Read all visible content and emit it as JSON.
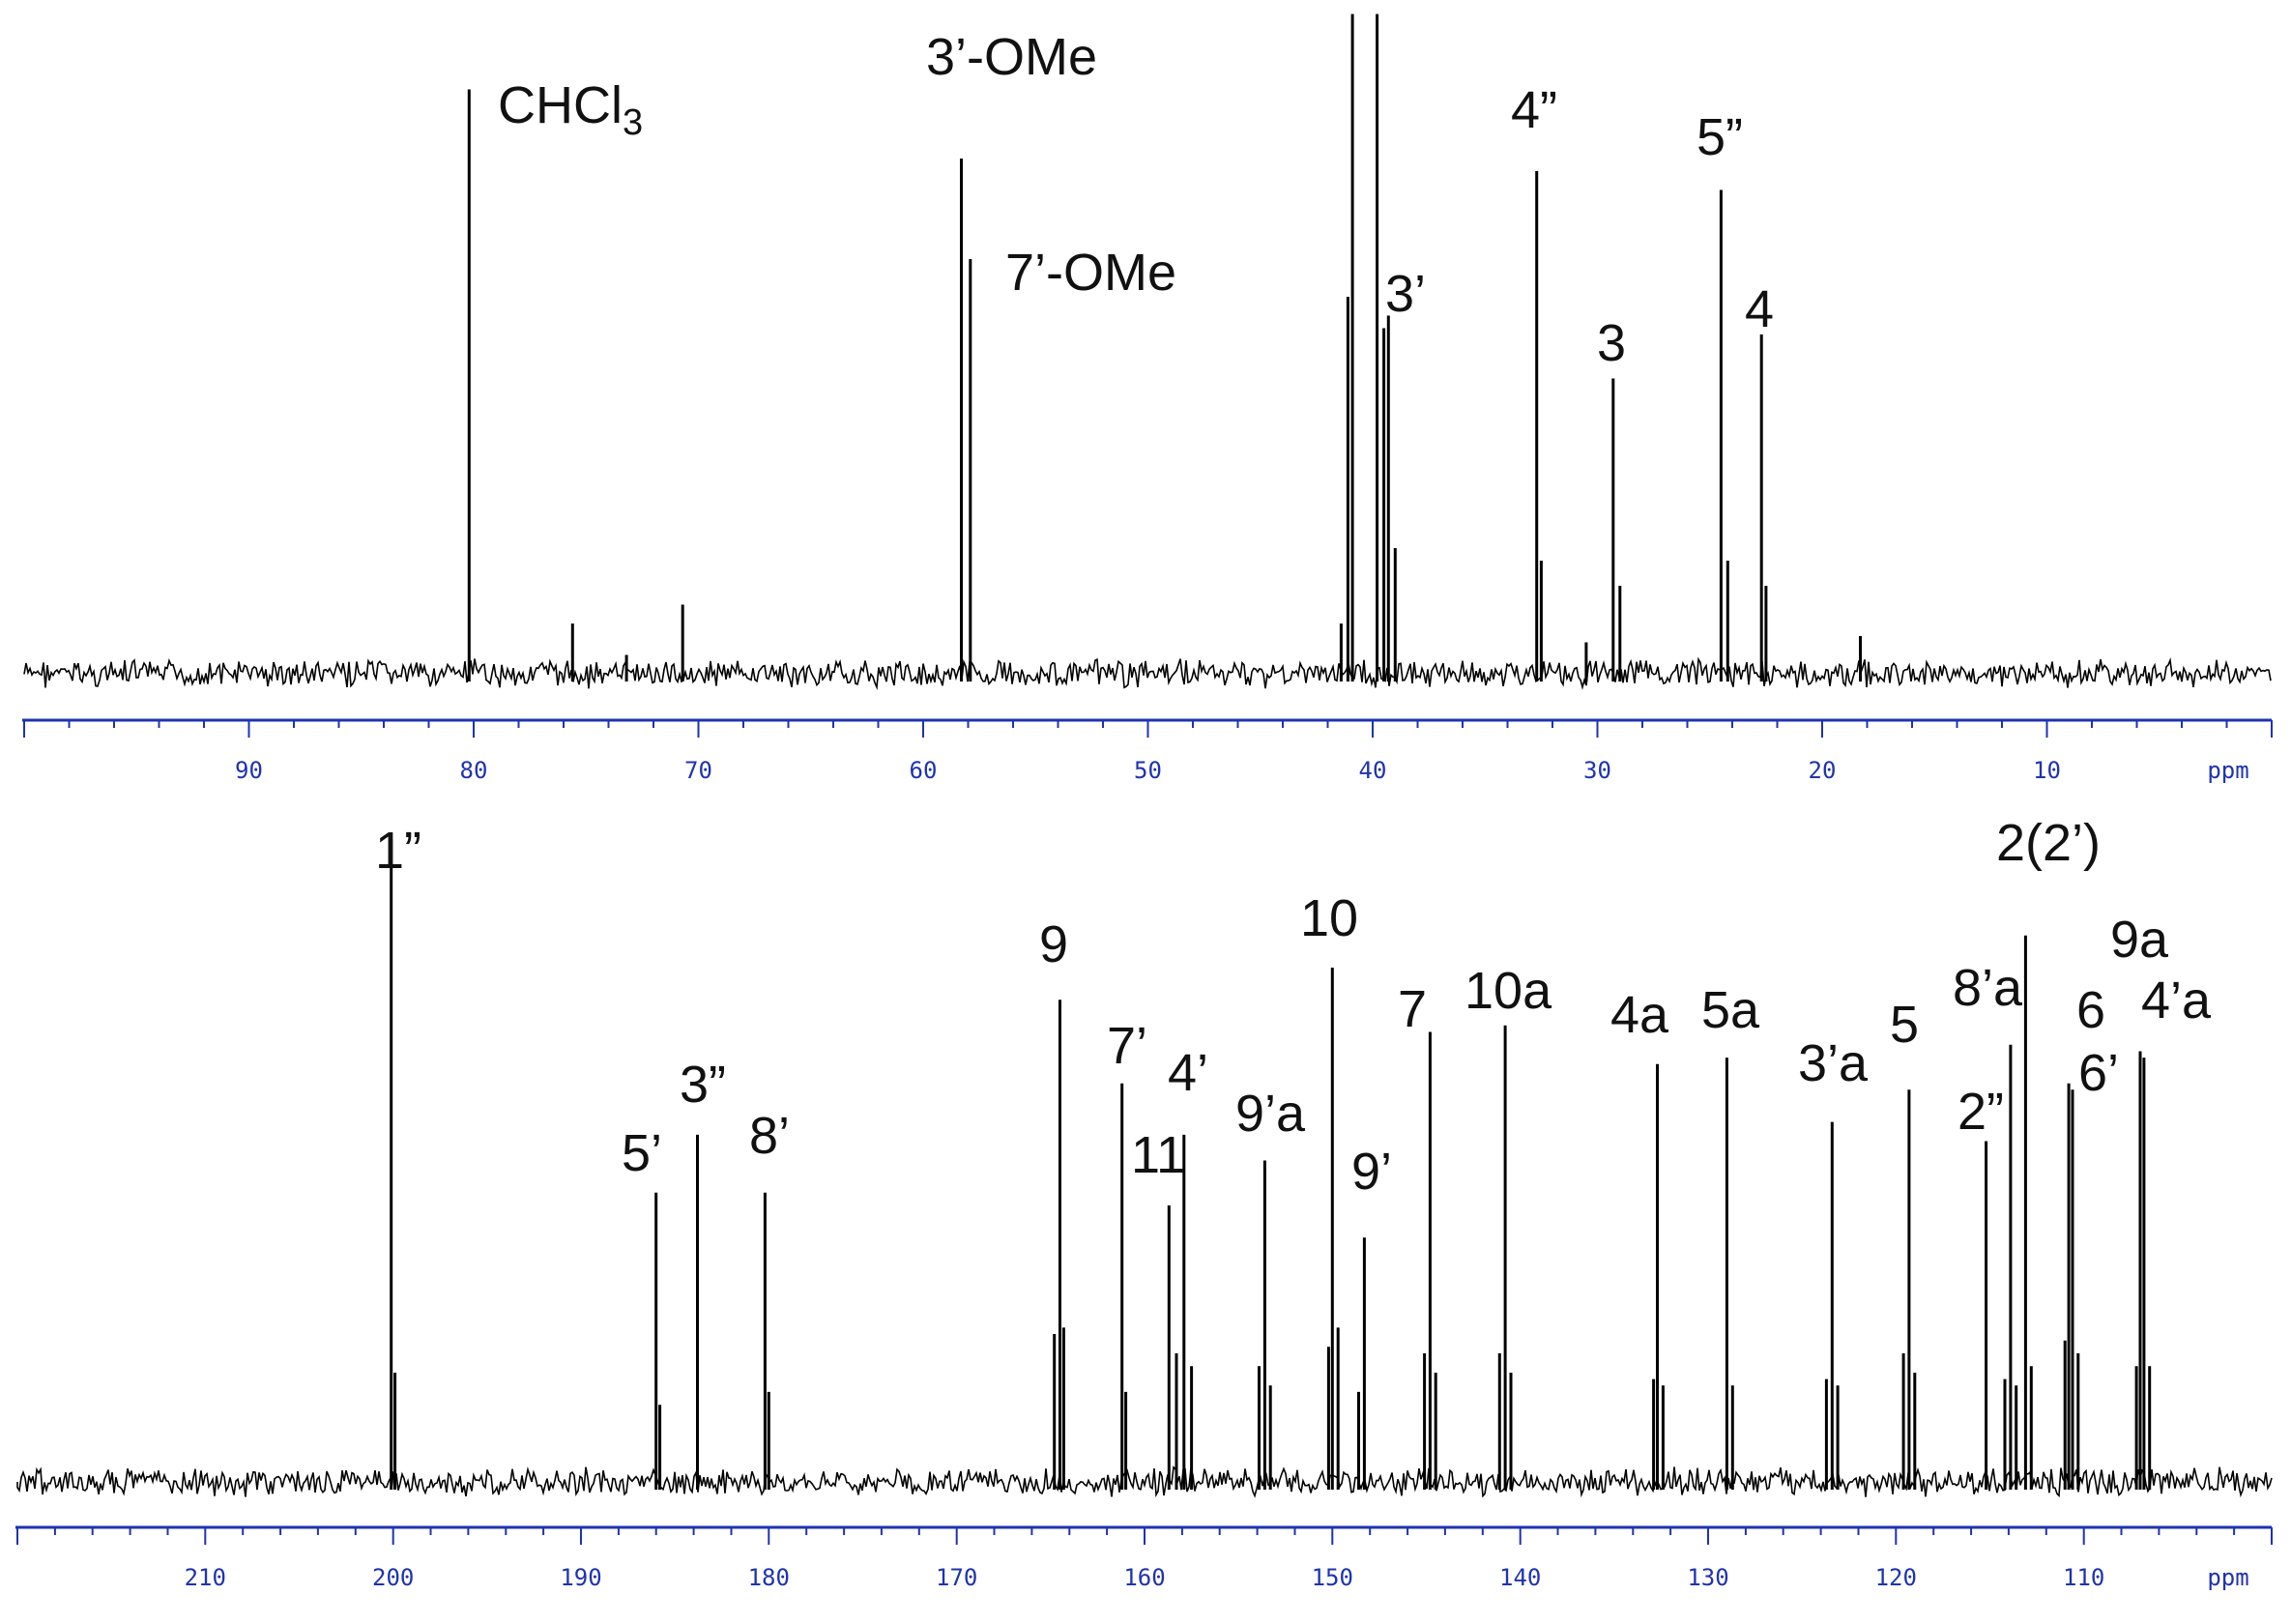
{
  "chart_data": [
    {
      "type": "line",
      "title": "",
      "xlabel": "ppm",
      "xlim": [
        100,
        0
      ],
      "x_ticks": [
        90,
        80,
        70,
        60,
        50,
        40,
        30,
        20,
        10
      ],
      "grid": false,
      "peaks": [
        {
          "ppm": 80.2,
          "height": 0.93,
          "label": "CHCl",
          "sub": "3"
        },
        {
          "ppm": 75.6,
          "height": 0.08,
          "label": ""
        },
        {
          "ppm": 73.2,
          "height": 0.03,
          "label": ""
        },
        {
          "ppm": 70.7,
          "height": 0.11,
          "label": ""
        },
        {
          "ppm": 58.3,
          "height": 0.82,
          "label": "3’-OMe"
        },
        {
          "ppm": 57.9,
          "height": 0.66,
          "label": "7’-OMe"
        },
        {
          "ppm": 41.4,
          "height": 0.08,
          "label": ""
        },
        {
          "ppm": 41.1,
          "height": 0.6,
          "label": ""
        },
        {
          "ppm": 40.9,
          "height": 1.05,
          "label": ""
        },
        {
          "ppm": 39.8,
          "height": 1.05,
          "label": ""
        },
        {
          "ppm": 39.5,
          "height": 0.55,
          "label": ""
        },
        {
          "ppm": 39.3,
          "height": 0.57,
          "label": "3’"
        },
        {
          "ppm": 39.0,
          "height": 0.2,
          "label": ""
        },
        {
          "ppm": 32.7,
          "height": 0.8,
          "label": "4”"
        },
        {
          "ppm": 32.5,
          "height": 0.18,
          "label": ""
        },
        {
          "ppm": 30.5,
          "height": 0.05,
          "label": ""
        },
        {
          "ppm": 29.3,
          "height": 0.47,
          "label": "3"
        },
        {
          "ppm": 29.0,
          "height": 0.14,
          "label": ""
        },
        {
          "ppm": 24.5,
          "height": 0.77,
          "label": "5”"
        },
        {
          "ppm": 24.2,
          "height": 0.18,
          "label": ""
        },
        {
          "ppm": 22.7,
          "height": 0.54,
          "label": "4"
        },
        {
          "ppm": 22.5,
          "height": 0.14,
          "label": ""
        },
        {
          "ppm": 18.3,
          "height": 0.06,
          "label": ""
        }
      ]
    },
    {
      "type": "line",
      "title": "",
      "xlabel": "ppm",
      "xlim": [
        220,
        100
      ],
      "x_ticks": [
        210,
        200,
        190,
        180,
        170,
        160,
        150,
        140,
        130,
        120,
        110
      ],
      "grid": false,
      "peaks": [
        {
          "ppm": 200.1,
          "height": 1.0,
          "label": "1”"
        },
        {
          "ppm": 199.9,
          "height": 0.17,
          "label": ""
        },
        {
          "ppm": 186.0,
          "height": 0.45,
          "label": "5’"
        },
        {
          "ppm": 185.8,
          "height": 0.12,
          "label": ""
        },
        {
          "ppm": 183.8,
          "height": 0.54,
          "label": "3”"
        },
        {
          "ppm": 180.2,
          "height": 0.45,
          "label": "8’"
        },
        {
          "ppm": 180.0,
          "height": 0.14,
          "label": ""
        },
        {
          "ppm": 164.8,
          "height": 0.23,
          "label": ""
        },
        {
          "ppm": 164.5,
          "height": 0.75,
          "label": "9"
        },
        {
          "ppm": 164.3,
          "height": 0.24,
          "label": ""
        },
        {
          "ppm": 161.2,
          "height": 0.62,
          "label": "7’"
        },
        {
          "ppm": 161.0,
          "height": 0.14,
          "label": ""
        },
        {
          "ppm": 158.7,
          "height": 0.43,
          "label": "11"
        },
        {
          "ppm": 158.3,
          "height": 0.2,
          "label": ""
        },
        {
          "ppm": 157.9,
          "height": 0.54,
          "label": "4’"
        },
        {
          "ppm": 157.5,
          "height": 0.18,
          "label": ""
        },
        {
          "ppm": 153.9,
          "height": 0.18,
          "label": ""
        },
        {
          "ppm": 153.6,
          "height": 0.5,
          "label": "9’a"
        },
        {
          "ppm": 153.3,
          "height": 0.15,
          "label": ""
        },
        {
          "ppm": 150.2,
          "height": 0.21,
          "label": ""
        },
        {
          "ppm": 150.0,
          "height": 0.8,
          "label": "10"
        },
        {
          "ppm": 149.7,
          "height": 0.24,
          "label": ""
        },
        {
          "ppm": 148.6,
          "height": 0.14,
          "label": ""
        },
        {
          "ppm": 148.3,
          "height": 0.38,
          "label": "9’"
        },
        {
          "ppm": 145.1,
          "height": 0.2,
          "label": ""
        },
        {
          "ppm": 144.8,
          "height": 0.7,
          "label": "7"
        },
        {
          "ppm": 144.5,
          "height": 0.17,
          "label": ""
        },
        {
          "ppm": 141.1,
          "height": 0.2,
          "label": ""
        },
        {
          "ppm": 140.8,
          "height": 0.71,
          "label": "10a"
        },
        {
          "ppm": 140.5,
          "height": 0.17,
          "label": ""
        },
        {
          "ppm": 132.9,
          "height": 0.16,
          "label": ""
        },
        {
          "ppm": 132.7,
          "height": 0.65,
          "label": "4a"
        },
        {
          "ppm": 132.4,
          "height": 0.15,
          "label": ""
        },
        {
          "ppm": 129.0,
          "height": 0.66,
          "label": "5a"
        },
        {
          "ppm": 128.7,
          "height": 0.15,
          "label": ""
        },
        {
          "ppm": 123.7,
          "height": 0.16,
          "label": ""
        },
        {
          "ppm": 123.4,
          "height": 0.56,
          "label": "3’a"
        },
        {
          "ppm": 123.1,
          "height": 0.15,
          "label": ""
        },
        {
          "ppm": 119.6,
          "height": 0.2,
          "label": ""
        },
        {
          "ppm": 119.3,
          "height": 0.61,
          "label": "5"
        },
        {
          "ppm": 119.0,
          "height": 0.17,
          "label": ""
        },
        {
          "ppm": 115.2,
          "height": 0.53,
          "label": "2”"
        },
        {
          "ppm": 114.2,
          "height": 0.16,
          "label": ""
        },
        {
          "ppm": 113.9,
          "height": 0.68,
          "label": "8’a"
        },
        {
          "ppm": 113.6,
          "height": 0.15,
          "label": ""
        },
        {
          "ppm": 113.1,
          "height": 0.85,
          "label": "2(2’)"
        },
        {
          "ppm": 112.8,
          "height": 0.18,
          "label": ""
        },
        {
          "ppm": 111.0,
          "height": 0.22,
          "label": ""
        },
        {
          "ppm": 110.8,
          "height": 0.62,
          "label": "6"
        },
        {
          "ppm": 110.6,
          "height": 0.61,
          "label": "6’"
        },
        {
          "ppm": 110.3,
          "height": 0.2,
          "label": ""
        },
        {
          "ppm": 107.2,
          "height": 0.18,
          "label": ""
        },
        {
          "ppm": 107.0,
          "height": 0.67,
          "label": "9a"
        },
        {
          "ppm": 106.8,
          "height": 0.66,
          "label": "4’a"
        },
        {
          "ppm": 106.5,
          "height": 0.18,
          "label": ""
        }
      ]
    }
  ]
}
